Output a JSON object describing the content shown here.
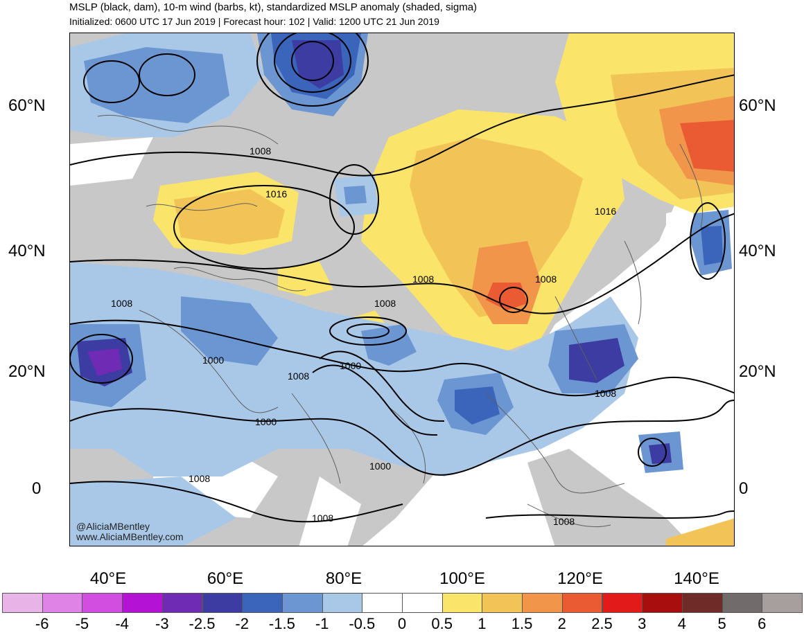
{
  "header": {
    "title": "MSLP (black, dam), 10-m wind (barbs, kt), standardized MSLP anomaly (shaded, sigma)",
    "subtitle": "Initialized: 0600 UTC 17 Jun 2019 | Forecast hour: 102 | Valid: 1200 UTC 21 Jun 2019"
  },
  "axes": {
    "lat_labels": [
      "60°N",
      "40°N",
      "20°N",
      "0"
    ],
    "lon_labels": [
      "40°E",
      "60°E",
      "80°E",
      "100°E",
      "120°E",
      "140°E"
    ]
  },
  "isobar_labels": [
    "1008",
    "1016",
    "1016",
    "1008",
    "1008",
    "1008",
    "1008",
    "1000",
    "1000",
    "1008",
    "1000",
    "1008",
    "1000",
    "1008",
    "1008",
    "1008"
  ],
  "credits": {
    "handle": "@AliciaMBentley",
    "website": "www.AliciaMBentley.com"
  },
  "colorbar": {
    "ticks": [
      "-6",
      "-5",
      "-4",
      "-3",
      "-2.5",
      "-2",
      "-1.5",
      "-1",
      "-0.5",
      "0",
      "0.5",
      "1",
      "1.5",
      "2",
      "2.5",
      "3",
      "4",
      "5",
      "6"
    ],
    "colors": [
      "#e8b4e8",
      "#e083e6",
      "#d24ee0",
      "#b412d4",
      "#6f2bb3",
      "#3c3ca3",
      "#3b64bb",
      "#6b96d2",
      "#a9c8e8",
      "#ffffff",
      "#ffffff",
      "#fbe46a",
      "#f2c457",
      "#f0954a",
      "#ea5b34",
      "#e21a1a",
      "#a80e0e",
      "#6f2b28",
      "#726b6b",
      "#a79e9e"
    ]
  },
  "colors": {
    "land_gray": "#c8c8c8",
    "coastline": "#5f5f5f",
    "isobar": "#000000"
  }
}
